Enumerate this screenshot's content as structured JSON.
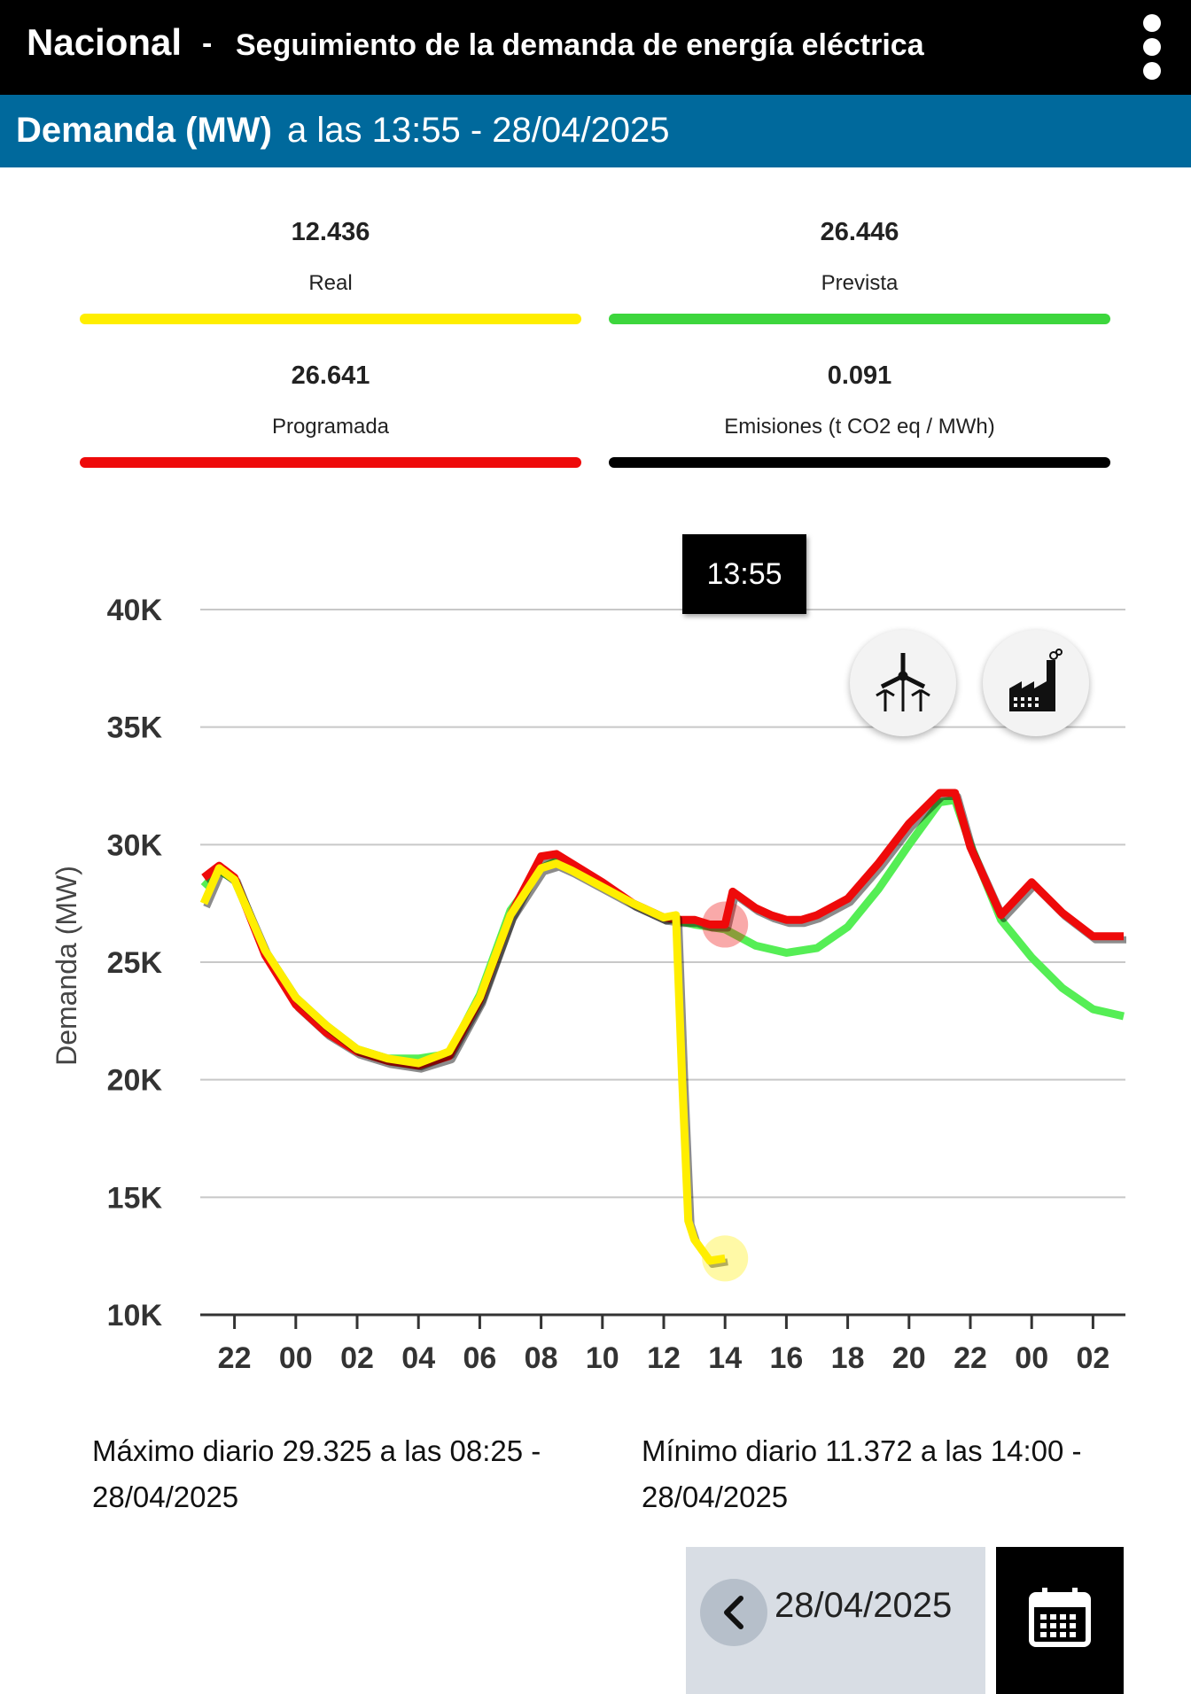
{
  "header": {
    "region": "Nacional",
    "separator": "-",
    "title": "Seguimiento de la demanda de energía eléctrica",
    "menu_icon": "more-vertical-icon"
  },
  "subheader": {
    "label": "Demanda (MW)",
    "time_text": "a las 13:55 - 28/04/2025"
  },
  "stats": [
    {
      "value": "12.436",
      "label": "Real",
      "color": "#ffee00"
    },
    {
      "value": "26.446",
      "label": "Prevista",
      "color": "#3dd63d"
    },
    {
      "value": "26.641",
      "label": "Programada",
      "color": "#ee0a0a"
    },
    {
      "value": "0.091",
      "label": "Emisiones (t CO2 eq / MWh)",
      "color": "#000000"
    }
  ],
  "tooltip": {
    "text": "13:55"
  },
  "buttons": {
    "wind_icon": "wind-turbine-icon",
    "factory_icon": "factory-icon",
    "back_icon": "chevron-left-icon",
    "calendar_icon": "calendar-icon"
  },
  "chart_data": {
    "type": "line",
    "ylabel": "Demanda (MW)",
    "ylim": [
      10000,
      40000
    ],
    "y_ticks": [
      "10K",
      "15K",
      "20K",
      "25K",
      "30K",
      "35K",
      "40K"
    ],
    "x_ticks": [
      "22",
      "00",
      "02",
      "04",
      "06",
      "08",
      "10",
      "12",
      "14",
      "16",
      "18",
      "20",
      "22",
      "00",
      "02"
    ],
    "x_unit": "hours since 00:00 of 28/04/2025",
    "xlim": [
      -3,
      27
    ],
    "grid": true,
    "series": [
      {
        "name": "Prevista",
        "color": "#55ee55",
        "x": [
          -3,
          -2.5,
          -2,
          -1,
          0,
          1,
          2,
          3,
          4,
          5,
          6,
          7,
          8,
          8.5,
          9,
          10,
          11,
          12,
          13,
          14,
          15,
          16,
          17,
          18,
          19,
          20,
          21,
          21.5,
          22,
          23,
          24,
          25,
          26,
          27
        ],
        "y": [
          28200,
          28900,
          28500,
          25500,
          23500,
          22300,
          21300,
          20900,
          20900,
          21100,
          23600,
          27200,
          29000,
          29300,
          29000,
          28200,
          27500,
          26900,
          26600,
          26400,
          25700,
          25400,
          25600,
          26500,
          28100,
          30000,
          31800,
          31900,
          30000,
          26800,
          25200,
          23900,
          23000,
          22700
        ]
      },
      {
        "name": "Programada",
        "color": "#ee0a0a",
        "x": [
          -3,
          -2.5,
          -2,
          -1,
          0,
          1,
          2,
          3,
          4,
          5,
          6,
          7,
          8,
          8.5,
          9,
          10,
          11,
          12,
          12.5,
          13,
          13.5,
          14,
          14.25,
          15,
          15.5,
          16,
          16.5,
          17,
          18,
          19,
          20,
          21,
          21.5,
          22,
          23,
          24,
          25,
          26,
          27
        ],
        "y": [
          28600,
          29100,
          28600,
          25300,
          23200,
          22000,
          21200,
          20800,
          20600,
          21000,
          23400,
          27000,
          29500,
          29600,
          29200,
          28400,
          27500,
          26900,
          26800,
          26800,
          26600,
          26600,
          28000,
          27300,
          27000,
          26800,
          26800,
          27000,
          27700,
          29200,
          30900,
          32200,
          32200,
          29900,
          27000,
          28400,
          27100,
          26100,
          26100
        ]
      },
      {
        "name": "Real",
        "color": "#ffee00",
        "x": [
          -3,
          -2.5,
          -2,
          -1,
          0,
          1,
          2,
          3,
          4,
          5,
          6,
          7,
          8,
          8.5,
          9,
          10,
          11,
          12,
          12.4,
          12.6,
          12.8,
          13,
          13.5,
          14
        ],
        "y": [
          27500,
          29000,
          28500,
          25500,
          23500,
          22300,
          21300,
          20900,
          20700,
          21200,
          23500,
          27000,
          29000,
          29200,
          28900,
          28200,
          27500,
          26900,
          27000,
          20000,
          14000,
          13200,
          12300,
          12400
        ]
      }
    ],
    "highlight_time": "13:55"
  },
  "summary": {
    "max_text": "Máximo diario 29.325 a las 08:25 - 28/04/2025",
    "min_text": "Mínimo diario 11.372 a las 14:00 - 28/04/2025"
  },
  "date_picker": {
    "date": "28/04/2025"
  }
}
